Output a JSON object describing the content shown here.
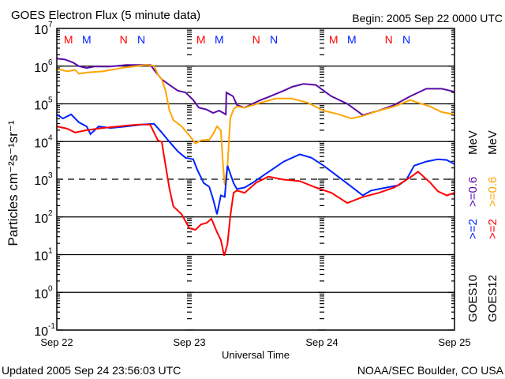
{
  "colors": {
    "goes10_2": "#0022ff",
    "goes10_06": "#5a0aa8",
    "goes12_2": "#ff0000",
    "goes12_06": "#ffa500",
    "marker_red": "#ff0000",
    "marker_blue": "#0022ff"
  },
  "chart_data": {
    "type": "line",
    "title": "GOES Electron Flux (5 minute data)",
    "begin_label": "Begin: 2005 Sep 22 0000 UTC",
    "xlabel": "Universal Time",
    "ylabel": "Particles cm⁻²s⁻¹sr⁻¹",
    "yscale": "log",
    "ylim": [
      0.1,
      10000000
    ],
    "xlim_hours": [
      0,
      72
    ],
    "y_ticks": [
      {
        "base": "10",
        "exp": "7",
        "log": 7
      },
      {
        "base": "10",
        "exp": "6",
        "log": 6
      },
      {
        "base": "10",
        "exp": "5",
        "log": 5
      },
      {
        "base": "10",
        "exp": "4",
        "log": 4
      },
      {
        "base": "10",
        "exp": "3",
        "log": 3
      },
      {
        "base": "10",
        "exp": "2",
        "log": 2
      },
      {
        "base": "10",
        "exp": "1",
        "log": 1
      },
      {
        "base": "10",
        "exp": "0",
        "log": 0
      },
      {
        "base": "10",
        "exp": "-1",
        "log": -1
      }
    ],
    "x_ticks": [
      {
        "label": "Sep 22",
        "hour": 0
      },
      {
        "label": "Sep 23",
        "hour": 24
      },
      {
        "label": "Sep 24",
        "hour": 48
      },
      {
        "label": "Sep 25",
        "hour": 72
      }
    ],
    "dashed_level_log": 3,
    "markers": [
      {
        "label": "M",
        "hour": 2.1,
        "color": "red"
      },
      {
        "label": "M",
        "hour": 5.4,
        "color": "blue"
      },
      {
        "label": "N",
        "hour": 12.1,
        "color": "red"
      },
      {
        "label": "N",
        "hour": 15.3,
        "color": "blue"
      },
      {
        "label": "M",
        "hour": 26.1,
        "color": "red"
      },
      {
        "label": "M",
        "hour": 29.4,
        "color": "blue"
      },
      {
        "label": "N",
        "hour": 36.1,
        "color": "red"
      },
      {
        "label": "N",
        "hour": 39.3,
        "color": "blue"
      },
      {
        "label": "M",
        "hour": 50.1,
        "color": "red"
      },
      {
        "label": "M",
        "hour": 53.4,
        "color": "blue"
      },
      {
        "label": "N",
        "hour": 60.1,
        "color": "red"
      },
      {
        "label": "N",
        "hour": 63.3,
        "color": "blue"
      }
    ],
    "legend": {
      "goes10": {
        "sat": "GOES10",
        "e2": ">=2",
        "e06": ">=0.6",
        "unit": "MeV"
      },
      "goes12": {
        "sat": "GOES12",
        "e2": ">=2",
        "e06": ">=0.6",
        "unit": "MeV"
      }
    },
    "series_format": "points are [hour since Sep 22 00 UTC, log10(flux)]",
    "series": [
      {
        "name": "GOES10 >=0.6 MeV",
        "color": "goes10_06",
        "points": [
          [
            0,
            6.2
          ],
          [
            1.4,
            6.18
          ],
          [
            2.9,
            6.1
          ],
          [
            4,
            6.0
          ],
          [
            5.4,
            5.95
          ],
          [
            6.9,
            5.99
          ],
          [
            9.7,
            5.99
          ],
          [
            12.6,
            6.03
          ],
          [
            15.4,
            6.03
          ],
          [
            17,
            6.03
          ],
          [
            17.6,
            5.9
          ],
          [
            19,
            5.65
          ],
          [
            20.4,
            5.5
          ],
          [
            21.9,
            5.35
          ],
          [
            23.3,
            5.3
          ],
          [
            24.7,
            5.1
          ],
          [
            25.7,
            4.9
          ],
          [
            27.1,
            4.85
          ],
          [
            28.3,
            4.76
          ],
          [
            29.4,
            4.82
          ],
          [
            30.6,
            4.72
          ],
          [
            30.7,
            5.3
          ],
          [
            31.9,
            5.2
          ],
          [
            32.6,
            4.97
          ],
          [
            34,
            4.9
          ],
          [
            35.4,
            5.0
          ],
          [
            36.9,
            5.1
          ],
          [
            38.3,
            5.18
          ],
          [
            41.1,
            5.35
          ],
          [
            42.6,
            5.45
          ],
          [
            44.7,
            5.53
          ],
          [
            46.9,
            5.5
          ],
          [
            48.3,
            5.35
          ],
          [
            49.7,
            5.2
          ],
          [
            52.6,
            5.0
          ],
          [
            55.4,
            4.7
          ],
          [
            58.3,
            4.82
          ],
          [
            61.1,
            4.97
          ],
          [
            64,
            5.2
          ],
          [
            66.9,
            5.4
          ],
          [
            69.7,
            5.4
          ],
          [
            72,
            5.32
          ]
        ]
      },
      {
        "name": "GOES12 >=0.6 MeV",
        "color": "goes12_06",
        "points": [
          [
            0,
            5.93
          ],
          [
            1.9,
            5.86
          ],
          [
            3.3,
            5.9
          ],
          [
            4,
            5.8
          ],
          [
            5.4,
            5.83
          ],
          [
            8.3,
            5.86
          ],
          [
            12.6,
            5.97
          ],
          [
            16.1,
            6.03
          ],
          [
            17.6,
            6.01
          ],
          [
            18.3,
            5.78
          ],
          [
            19,
            5.65
          ],
          [
            19.7,
            5.34
          ],
          [
            20.4,
            4.82
          ],
          [
            21.1,
            4.57
          ],
          [
            22.6,
            4.4
          ],
          [
            24,
            4.16
          ],
          [
            25.1,
            3.95
          ],
          [
            26.1,
            4.03
          ],
          [
            27.6,
            4.05
          ],
          [
            28.3,
            4.2
          ],
          [
            29,
            4.4
          ],
          [
            29.7,
            4.3
          ],
          [
            30.1,
            3.36
          ],
          [
            30.4,
            2.84
          ],
          [
            30.9,
            3.36
          ],
          [
            31.4,
            4.61
          ],
          [
            32,
            4.86
          ],
          [
            32.6,
            4.93
          ],
          [
            34,
            4.9
          ],
          [
            36.9,
            5.03
          ],
          [
            39.7,
            5.14
          ],
          [
            42.6,
            5.14
          ],
          [
            45.4,
            5.03
          ],
          [
            48.3,
            4.82
          ],
          [
            51.1,
            4.72
          ],
          [
            53.3,
            4.61
          ],
          [
            55.4,
            4.68
          ],
          [
            58.3,
            4.82
          ],
          [
            61.1,
            4.93
          ],
          [
            64,
            5.1
          ],
          [
            65.4,
            5.03
          ],
          [
            67.6,
            4.93
          ],
          [
            69.7,
            4.78
          ],
          [
            72,
            4.72
          ]
        ]
      },
      {
        "name": "GOES10 >=2 MeV",
        "color": "goes10_2",
        "points": [
          [
            0,
            4.72
          ],
          [
            1.1,
            4.61
          ],
          [
            2.6,
            4.72
          ],
          [
            4,
            4.51
          ],
          [
            5.4,
            4.4
          ],
          [
            6.1,
            4.2
          ],
          [
            7.6,
            4.4
          ],
          [
            9.7,
            4.36
          ],
          [
            12.6,
            4.4
          ],
          [
            15.4,
            4.45
          ],
          [
            17.6,
            4.47
          ],
          [
            19,
            4.24
          ],
          [
            20.4,
            3.99
          ],
          [
            21.9,
            3.74
          ],
          [
            23.3,
            3.57
          ],
          [
            24.7,
            3.53
          ],
          [
            25.4,
            3.26
          ],
          [
            26.6,
            2.9
          ],
          [
            27.6,
            2.8
          ],
          [
            28.3,
            2.47
          ],
          [
            29,
            2.07
          ],
          [
            29.7,
            2.57
          ],
          [
            30.4,
            2.53
          ],
          [
            30.9,
            3.36
          ],
          [
            31.4,
            3.15
          ],
          [
            32,
            2.9
          ],
          [
            32.6,
            2.74
          ],
          [
            34,
            2.78
          ],
          [
            35.4,
            2.9
          ],
          [
            36.9,
            3.05
          ],
          [
            39,
            3.26
          ],
          [
            41.1,
            3.47
          ],
          [
            44,
            3.66
          ],
          [
            46.1,
            3.57
          ],
          [
            48.3,
            3.36
          ],
          [
            51.1,
            3.05
          ],
          [
            53.9,
            2.74
          ],
          [
            55.4,
            2.57
          ],
          [
            56.9,
            2.7
          ],
          [
            59.7,
            2.78
          ],
          [
            61.9,
            2.84
          ],
          [
            63.3,
            2.99
          ],
          [
            64.7,
            3.36
          ],
          [
            66.9,
            3.47
          ],
          [
            69,
            3.53
          ],
          [
            70.6,
            3.51
          ],
          [
            72,
            3.4
          ]
        ]
      },
      {
        "name": "GOES12 >=2 MeV",
        "color": "goes12_2",
        "points": [
          [
            0,
            4.4
          ],
          [
            1.9,
            4.34
          ],
          [
            3.3,
            4.24
          ],
          [
            5.4,
            4.3
          ],
          [
            8.3,
            4.36
          ],
          [
            11.1,
            4.4
          ],
          [
            14.7,
            4.45
          ],
          [
            16.9,
            4.45
          ],
          [
            18.3,
            4.03
          ],
          [
            19,
            3.99
          ],
          [
            19.7,
            3.36
          ],
          [
            20.4,
            2.74
          ],
          [
            21.1,
            2.28
          ],
          [
            22.6,
            2.07
          ],
          [
            24,
            1.7
          ],
          [
            25.1,
            1.66
          ],
          [
            26.1,
            1.8
          ],
          [
            27.1,
            1.84
          ],
          [
            28,
            1.95
          ],
          [
            29,
            1.6
          ],
          [
            29.7,
            1.39
          ],
          [
            30.3,
            0.97
          ],
          [
            30.9,
            1.28
          ],
          [
            31.4,
            2.01
          ],
          [
            32,
            2.64
          ],
          [
            32.6,
            2.7
          ],
          [
            34,
            2.64
          ],
          [
            36.1,
            2.91
          ],
          [
            38.3,
            3.07
          ],
          [
            41.1,
            2.99
          ],
          [
            44,
            2.95
          ],
          [
            46.9,
            2.78
          ],
          [
            49.7,
            2.64
          ],
          [
            52.6,
            2.37
          ],
          [
            55.4,
            2.53
          ],
          [
            58.3,
            2.64
          ],
          [
            61.1,
            2.78
          ],
          [
            64,
            3.05
          ],
          [
            65.4,
            3.2
          ],
          [
            67.6,
            2.91
          ],
          [
            69,
            2.68
          ],
          [
            70.6,
            2.57
          ],
          [
            72,
            2.64
          ]
        ]
      }
    ]
  },
  "footer": {
    "updated": "Updated 2005 Sep 24 23:56:03 UTC",
    "source": "NOAA/SEC Boulder, CO USA"
  }
}
